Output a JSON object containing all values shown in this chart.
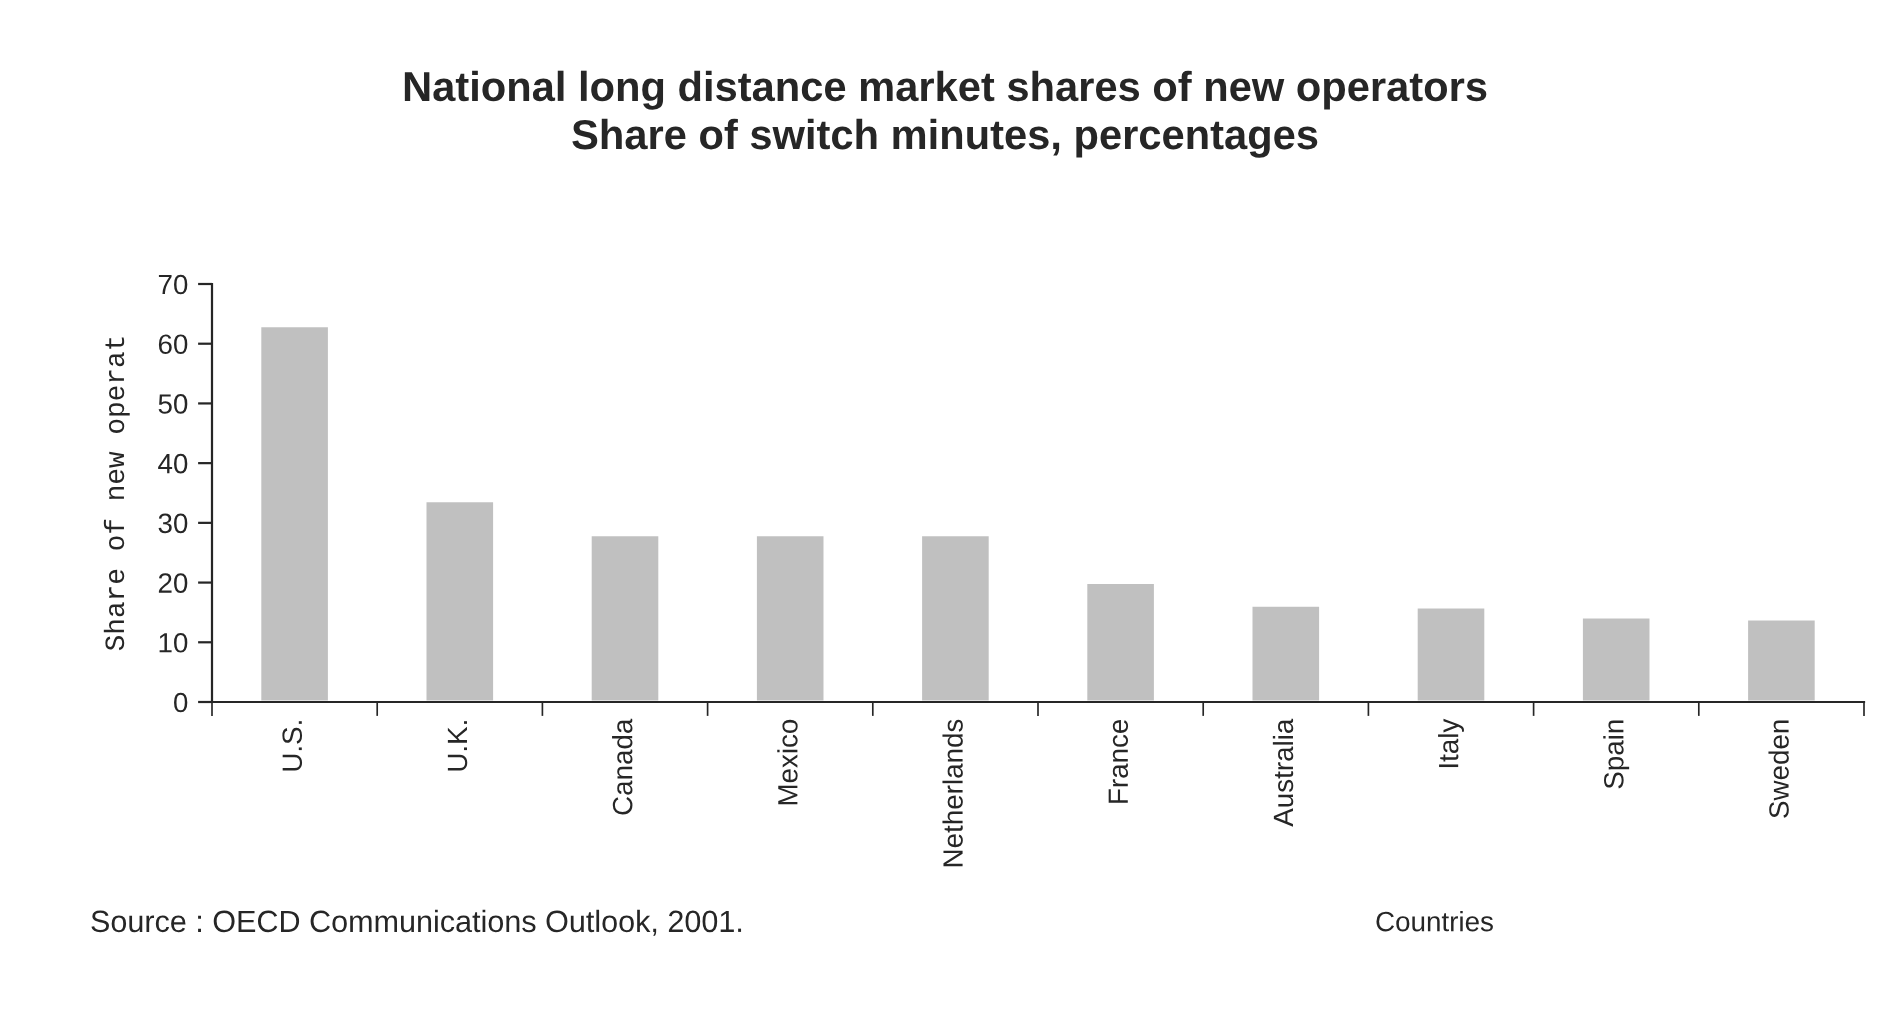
{
  "chart_data": {
    "type": "bar",
    "title": "National long distance market shares of new operators\nShare of switch minutes, percentages",
    "ylabel": "Share of new operat",
    "xlabel": "Countries",
    "categories": [
      "U.S.",
      "U.K.",
      "Canada",
      "Mexico",
      "Netherlands",
      "France",
      "Australia",
      "Italy",
      "Spain",
      "Sweden"
    ],
    "values": [
      63,
      33.7,
      28,
      28,
      28,
      20,
      16.2,
      15.9,
      14.2,
      13.9
    ],
    "color": "#c0c0c0",
    "ylim": [
      0,
      70
    ],
    "yticks": [
      0,
      10,
      20,
      30,
      40,
      50,
      60,
      70
    ],
    "grid": false,
    "annotations": [
      "Source : OECD Communications Outlook, 2001."
    ]
  }
}
